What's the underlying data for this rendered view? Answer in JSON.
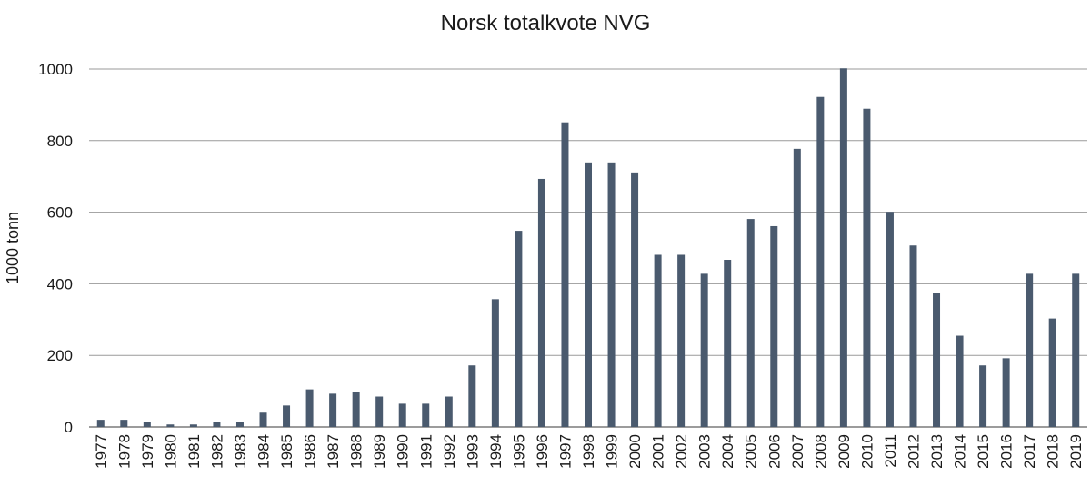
{
  "chart_data": {
    "type": "bar",
    "title": "Norsk totalkvote NVG",
    "xlabel": "",
    "ylabel": "1000 tonn",
    "ylim": [
      0,
      1000
    ],
    "yticks": [
      0,
      200,
      400,
      600,
      800,
      1000
    ],
    "grid": true,
    "bar_color": "#4a5a6e",
    "categories": [
      "1977",
      "1978",
      "1979",
      "1980",
      "1981",
      "1982",
      "1983",
      "1984",
      "1985",
      "1986",
      "1987",
      "1988",
      "1989",
      "1990",
      "1991",
      "1992",
      "1993",
      "1994",
      "1995",
      "1996",
      "1997",
      "1998",
      "1999",
      "2000",
      "2001",
      "2002",
      "2003",
      "2004",
      "2005",
      "2006",
      "2007",
      "2008",
      "2009",
      "2010",
      "2011",
      "2012",
      "2013",
      "2014",
      "2015",
      "2016",
      "2017",
      "2018",
      "2019"
    ],
    "values": [
      20,
      20,
      13,
      7,
      7,
      13,
      13,
      40,
      60,
      105,
      93,
      98,
      85,
      65,
      65,
      85,
      172,
      357,
      548,
      693,
      851,
      739,
      739,
      711,
      481,
      481,
      428,
      467,
      581,
      561,
      777,
      922,
      1002,
      889,
      601,
      507,
      375,
      255,
      172,
      192,
      428,
      303,
      428
    ]
  }
}
